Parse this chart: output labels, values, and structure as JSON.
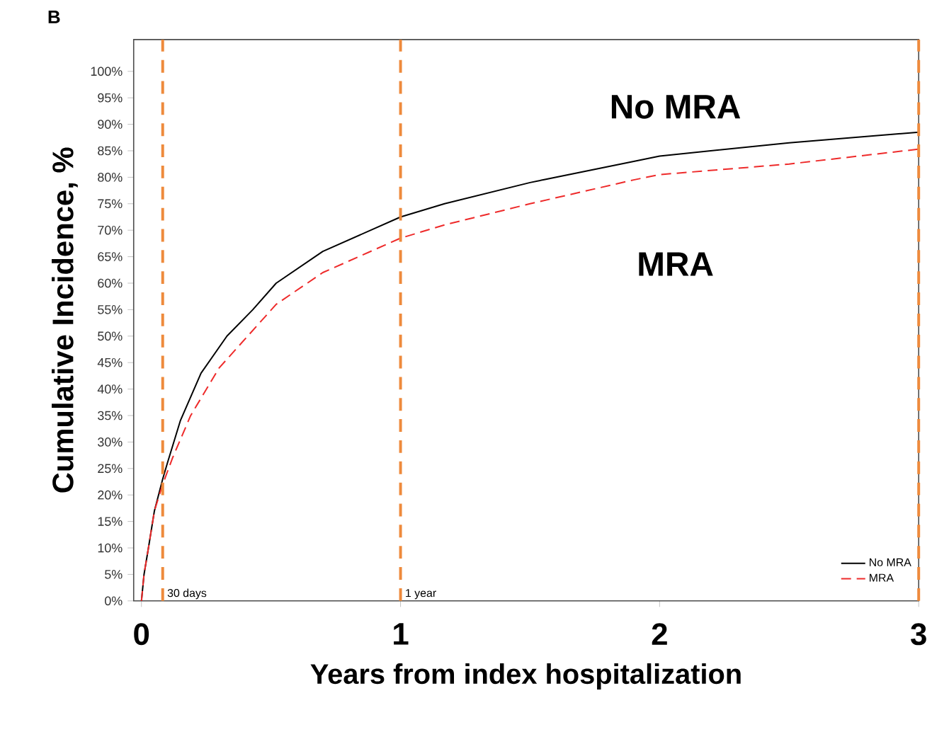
{
  "chart_data": {
    "type": "line",
    "title": "B",
    "xlabel": "Years from index hospitalization",
    "ylabel": "Cumulative Incidence, %",
    "xlim": [
      -0.03,
      3
    ],
    "xticks": [
      0,
      1,
      2,
      3
    ],
    "ylim": [
      0,
      106
    ],
    "yticks": [
      {
        "value": 0,
        "label": "0%"
      },
      {
        "value": 5,
        "label": "5%"
      },
      {
        "value": 10,
        "label": "10%"
      },
      {
        "value": 15,
        "label": "15%"
      },
      {
        "value": 20,
        "label": "20%"
      },
      {
        "value": 25,
        "label": "25%"
      },
      {
        "value": 30,
        "label": "30%"
      },
      {
        "value": 35,
        "label": "35%"
      },
      {
        "value": 40,
        "label": "40%"
      },
      {
        "value": 45,
        "label": "45%"
      },
      {
        "value": 50,
        "label": "50%"
      },
      {
        "value": 55,
        "label": "55%"
      },
      {
        "value": 60,
        "label": "60%"
      },
      {
        "value": 65,
        "label": "65%"
      },
      {
        "value": 70,
        "label": "70%"
      },
      {
        "value": 75,
        "label": "75%"
      },
      {
        "value": 80,
        "label": "80%"
      },
      {
        "value": 85,
        "label": "85%"
      },
      {
        "value": 90,
        "label": "90%"
      },
      {
        "value": 95,
        "label": "95%"
      },
      {
        "value": 100,
        "label": "100%"
      }
    ],
    "series": [
      {
        "name": "No MRA",
        "color": "#000000",
        "line_style": "solid",
        "x": [
          0,
          0.01,
          0.027,
          0.05,
          0.082,
          0.1,
          0.15,
          0.23,
          0.33,
          0.43,
          0.52,
          0.7,
          1.0,
          1.17,
          1.5,
          1.9,
          2.0,
          2.5,
          3.0
        ],
        "values": [
          0,
          5,
          10,
          17,
          23,
          26,
          34,
          43,
          50,
          55,
          60,
          66,
          72.5,
          75,
          79,
          83,
          84,
          86.5,
          88.5
        ]
      },
      {
        "name": "MRA",
        "color": "#ee2a2a",
        "line_style": "dashed",
        "x": [
          0,
          0.01,
          0.027,
          0.05,
          0.082,
          0.12,
          0.19,
          0.3,
          0.52,
          0.7,
          1.0,
          1.17,
          1.5,
          1.9,
          2.0,
          2.5,
          3.0
        ],
        "values": [
          0,
          5,
          10,
          17,
          22,
          27,
          35,
          44,
          56,
          62,
          68.5,
          71,
          75,
          79.5,
          80.5,
          82.5,
          85.3
        ]
      }
    ],
    "ref_lines": [
      {
        "axis": "x",
        "value": 0.082,
        "label": "30 days",
        "color": "#ee8a3c",
        "line_style": "dashed"
      },
      {
        "axis": "x",
        "value": 1,
        "label": "1 year",
        "color": "#ee8a3c",
        "line_style": "dashed"
      },
      {
        "axis": "x",
        "value": 3,
        "color": "#ee8a3c",
        "line_style": "dashed"
      }
    ],
    "annotations": [
      "No MRA",
      "MRA"
    ],
    "legend": "bottom right",
    "grid": false
  }
}
